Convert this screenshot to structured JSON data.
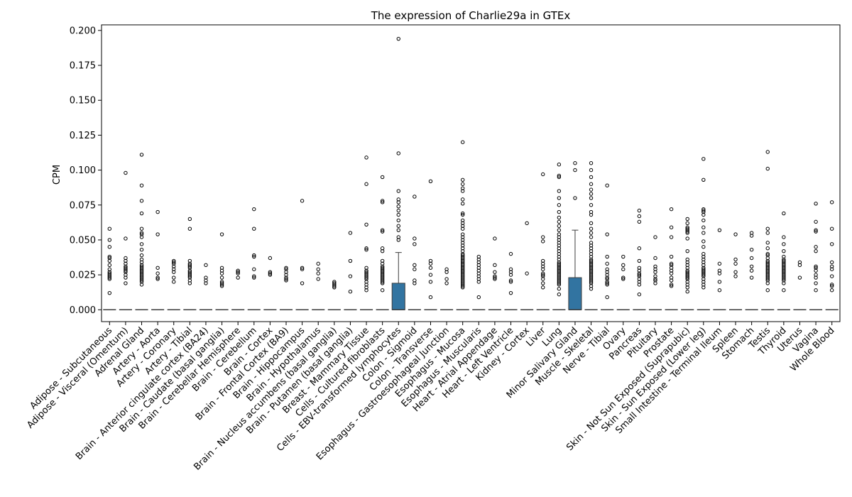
{
  "chart_data": {
    "type": "box",
    "title": "The expression of Charlie29a in GTEx",
    "xlabel": "",
    "ylabel": "CPM",
    "ylim": [
      -0.0085,
      0.204
    ],
    "yticks": [
      "0.000",
      "0.025",
      "0.050",
      "0.075",
      "0.100",
      "0.125",
      "0.150",
      "0.175",
      "0.200"
    ],
    "box_color": "#3274a1",
    "grid": false,
    "legend": "none",
    "categories": [
      "Adipose - Subcutaneous",
      "Adipose - Visceral (Omentum)",
      "Adrenal Gland",
      "Artery - Aorta",
      "Artery - Coronary",
      "Artery - Tibial",
      "Brain - Anterior cingulate cortex (BA24)",
      "Brain - Caudate (basal ganglia)",
      "Brain - Cerebellar Hemisphere",
      "Brain - Cerebellum",
      "Brain - Cortex",
      "Brain - Frontal Cortex (BA9)",
      "Brain - Hippocampus",
      "Brain - Hypothalamus",
      "Brain - Nucleus accumbens (basal ganglia)",
      "Brain - Putamen (basal ganglia)",
      "Breast - Mammary Tissue",
      "Cells - Cultured fibroblasts",
      "Cells - EBV-transformed lymphocytes",
      "Colon - Sigmoid",
      "Colon - Transverse",
      "Esophagus - Gastroesophageal Junction",
      "Esophagus - Mucosa",
      "Esophagus - Muscularis",
      "Heart - Atrial Appendage",
      "Heart - Left Ventricle",
      "Kidney - Cortex",
      "Liver",
      "Lung",
      "Minor Salivary Gland",
      "Muscle - Skeletal",
      "Nerve - Tibial",
      "Ovary",
      "Pancreas",
      "Pituitary",
      "Prostate",
      "Skin - Not Sun Exposed (Suprapubic)",
      "Skin - Sun Exposed (Lower leg)",
      "Small Intestine - Terminal Ileum",
      "Spleen",
      "Stomach",
      "Testis",
      "Thyroid",
      "Uterus",
      "Vagina",
      "Whole Blood"
    ],
    "boxes": [
      {
        "q1": 0,
        "median": 0,
        "q3": 0,
        "whislo": 0,
        "whishi": 0,
        "fliers": [
          0.012,
          0.022,
          0.023,
          0.024,
          0.025,
          0.026,
          0.027,
          0.029,
          0.032,
          0.035,
          0.037,
          0.038,
          0.045,
          0.05,
          0.058
        ]
      },
      {
        "q1": 0,
        "median": 0,
        "q3": 0,
        "whislo": 0,
        "whishi": 0,
        "fliers": [
          0.019,
          0.023,
          0.025,
          0.027,
          0.028,
          0.029,
          0.03,
          0.031,
          0.033,
          0.035,
          0.037,
          0.051,
          0.098
        ]
      },
      {
        "q1": 0,
        "median": 0,
        "q3": 0,
        "whislo": 0,
        "whishi": 0,
        "fliers": [
          0.018,
          0.02,
          0.021,
          0.022,
          0.023,
          0.024,
          0.025,
          0.026,
          0.027,
          0.028,
          0.029,
          0.03,
          0.031,
          0.032,
          0.034,
          0.036,
          0.039,
          0.043,
          0.047,
          0.052,
          0.054,
          0.055,
          0.058,
          0.069,
          0.078,
          0.089,
          0.111
        ]
      },
      {
        "q1": 0,
        "median": 0,
        "q3": 0,
        "whislo": 0,
        "whishi": 0,
        "fliers": [
          0.022,
          0.023,
          0.026,
          0.03,
          0.054,
          0.07
        ]
      },
      {
        "q1": 0,
        "median": 0,
        "q3": 0,
        "whislo": 0,
        "whishi": 0,
        "fliers": [
          0.02,
          0.023,
          0.027,
          0.029,
          0.031,
          0.033,
          0.034,
          0.035
        ]
      },
      {
        "q1": 0,
        "median": 0,
        "q3": 0,
        "whislo": 0,
        "whishi": 0,
        "fliers": [
          0.019,
          0.021,
          0.023,
          0.024,
          0.025,
          0.026,
          0.027,
          0.028,
          0.03,
          0.031,
          0.032,
          0.033,
          0.035,
          0.058,
          0.065
        ]
      },
      {
        "q1": 0,
        "median": 0,
        "q3": 0,
        "whislo": 0,
        "whishi": 0,
        "fliers": [
          0.019,
          0.021,
          0.023,
          0.032
        ]
      },
      {
        "q1": 0,
        "median": 0,
        "q3": 0,
        "whislo": 0,
        "whishi": 0,
        "fliers": [
          0.017,
          0.018,
          0.019,
          0.02,
          0.023,
          0.026,
          0.028,
          0.03,
          0.054
        ]
      },
      {
        "q1": 0,
        "median": 0,
        "q3": 0,
        "whislo": 0,
        "whishi": 0,
        "fliers": [
          0.023,
          0.026,
          0.027,
          0.028
        ]
      },
      {
        "q1": 0,
        "median": 0,
        "q3": 0,
        "whislo": 0,
        "whishi": 0,
        "fliers": [
          0.023,
          0.024,
          0.029,
          0.038,
          0.039,
          0.058,
          0.072
        ]
      },
      {
        "q1": 0,
        "median": 0,
        "q3": 0,
        "whislo": 0,
        "whishi": 0,
        "fliers": [
          0.025,
          0.026,
          0.027,
          0.037
        ]
      },
      {
        "q1": 0,
        "median": 0,
        "q3": 0,
        "whislo": 0,
        "whishi": 0,
        "fliers": [
          0.021,
          0.022,
          0.023,
          0.025,
          0.027,
          0.029,
          0.03
        ]
      },
      {
        "q1": 0,
        "median": 0,
        "q3": 0,
        "whislo": 0,
        "whishi": 0,
        "fliers": [
          0.019,
          0.029,
          0.03,
          0.078
        ]
      },
      {
        "q1": 0,
        "median": 0,
        "q3": 0,
        "whislo": 0,
        "whishi": 0,
        "fliers": [
          0.022,
          0.026,
          0.029,
          0.033
        ]
      },
      {
        "q1": 0,
        "median": 0,
        "q3": 0,
        "whislo": 0,
        "whishi": 0,
        "fliers": [
          0.016,
          0.017,
          0.018,
          0.019,
          0.02
        ]
      },
      {
        "q1": 0,
        "median": 0,
        "q3": 0,
        "whislo": 0,
        "whishi": 0,
        "fliers": [
          0.013,
          0.024,
          0.035,
          0.055
        ]
      },
      {
        "q1": 0,
        "median": 0,
        "q3": 0,
        "whislo": 0,
        "whishi": 0,
        "fliers": [
          0.014,
          0.016,
          0.018,
          0.02,
          0.022,
          0.023,
          0.024,
          0.025,
          0.026,
          0.027,
          0.028,
          0.03,
          0.043,
          0.044,
          0.061,
          0.09,
          0.109
        ]
      },
      {
        "q1": 0,
        "median": 0,
        "q3": 0,
        "whislo": 0,
        "whishi": 0,
        "fliers": [
          0.014,
          0.019,
          0.02,
          0.021,
          0.022,
          0.023,
          0.024,
          0.025,
          0.026,
          0.027,
          0.028,
          0.029,
          0.03,
          0.031,
          0.033,
          0.035,
          0.042,
          0.044,
          0.056,
          0.057,
          0.077,
          0.078,
          0.095
        ]
      },
      {
        "q1": 0,
        "median": 0,
        "q3": 0.019,
        "whislo": 0,
        "whishi": 0.041,
        "fliers": [
          0.05,
          0.052,
          0.057,
          0.06,
          0.064,
          0.068,
          0.071,
          0.074,
          0.077,
          0.079,
          0.085,
          0.112,
          0.194
        ]
      },
      {
        "q1": 0,
        "median": 0,
        "q3": 0,
        "whislo": 0,
        "whishi": 0,
        "fliers": [
          0.019,
          0.021,
          0.029,
          0.032,
          0.047,
          0.051,
          0.081
        ]
      },
      {
        "q1": 0,
        "median": 0,
        "q3": 0,
        "whislo": 0,
        "whishi": 0,
        "fliers": [
          0.009,
          0.02,
          0.025,
          0.03,
          0.033,
          0.035,
          0.092
        ]
      },
      {
        "q1": 0,
        "median": 0,
        "q3": 0,
        "whislo": 0,
        "whishi": 0,
        "fliers": [
          0.019,
          0.022,
          0.027,
          0.029
        ]
      },
      {
        "q1": 0,
        "median": 0,
        "q3": 0,
        "whislo": 0,
        "whishi": 0,
        "fliers": [
          0.016,
          0.017,
          0.018,
          0.019,
          0.02,
          0.021,
          0.022,
          0.023,
          0.024,
          0.025,
          0.026,
          0.027,
          0.028,
          0.029,
          0.03,
          0.031,
          0.032,
          0.033,
          0.034,
          0.035,
          0.036,
          0.037,
          0.038,
          0.039,
          0.04,
          0.042,
          0.044,
          0.046,
          0.048,
          0.05,
          0.052,
          0.054,
          0.058,
          0.06,
          0.062,
          0.064,
          0.068,
          0.069,
          0.076,
          0.079,
          0.085,
          0.087,
          0.09,
          0.093,
          0.12
        ]
      },
      {
        "q1": 0,
        "median": 0,
        "q3": 0,
        "whislo": 0,
        "whishi": 0,
        "fliers": [
          0.009,
          0.02,
          0.022,
          0.024,
          0.026,
          0.028,
          0.03,
          0.032,
          0.034,
          0.036,
          0.038
        ]
      },
      {
        "q1": 0,
        "median": 0,
        "q3": 0,
        "whislo": 0,
        "whishi": 0,
        "fliers": [
          0.022,
          0.023,
          0.024,
          0.027,
          0.032,
          0.051
        ]
      },
      {
        "q1": 0,
        "median": 0,
        "q3": 0,
        "whislo": 0,
        "whishi": 0,
        "fliers": [
          0.012,
          0.02,
          0.021,
          0.025,
          0.027,
          0.029,
          0.04
        ]
      },
      {
        "q1": 0,
        "median": 0,
        "q3": 0,
        "whislo": 0,
        "whishi": 0,
        "fliers": [
          0.026,
          0.062
        ]
      },
      {
        "q1": 0,
        "median": 0,
        "q3": 0,
        "whislo": 0,
        "whishi": 0,
        "fliers": [
          0.016,
          0.019,
          0.022,
          0.024,
          0.025,
          0.026,
          0.029,
          0.031,
          0.033,
          0.035,
          0.049,
          0.052,
          0.097
        ]
      },
      {
        "q1": 0,
        "median": 0,
        "q3": 0,
        "whislo": 0,
        "whishi": 0,
        "fliers": [
          0.011,
          0.015,
          0.018,
          0.019,
          0.02,
          0.021,
          0.022,
          0.023,
          0.024,
          0.025,
          0.026,
          0.027,
          0.028,
          0.029,
          0.03,
          0.031,
          0.032,
          0.033,
          0.034,
          0.036,
          0.038,
          0.04,
          0.042,
          0.044,
          0.046,
          0.048,
          0.05,
          0.052,
          0.054,
          0.057,
          0.06,
          0.063,
          0.066,
          0.07,
          0.075,
          0.08,
          0.085,
          0.095,
          0.096,
          0.104
        ]
      },
      {
        "q1": 0,
        "median": 0,
        "q3": 0.023,
        "whislo": 0,
        "whishi": 0.057,
        "fliers": [
          0.08,
          0.1,
          0.105
        ]
      },
      {
        "q1": 0,
        "median": 0,
        "q3": 0,
        "whislo": 0,
        "whishi": 0,
        "fliers": [
          0.015,
          0.017,
          0.019,
          0.02,
          0.021,
          0.022,
          0.023,
          0.024,
          0.025,
          0.026,
          0.027,
          0.028,
          0.029,
          0.03,
          0.031,
          0.032,
          0.033,
          0.034,
          0.035,
          0.036,
          0.038,
          0.04,
          0.042,
          0.044,
          0.046,
          0.048,
          0.052,
          0.055,
          0.058,
          0.062,
          0.068,
          0.07,
          0.075,
          0.08,
          0.083,
          0.086,
          0.09,
          0.095,
          0.1,
          0.105
        ]
      },
      {
        "q1": 0,
        "median": 0,
        "q3": 0,
        "whislo": 0,
        "whishi": 0,
        "fliers": [
          0.009,
          0.018,
          0.019,
          0.02,
          0.022,
          0.023,
          0.025,
          0.027,
          0.029,
          0.033,
          0.038,
          0.054,
          0.089
        ]
      },
      {
        "q1": 0,
        "median": 0,
        "q3": 0,
        "whislo": 0,
        "whishi": 0,
        "fliers": [
          0.022,
          0.023,
          0.029,
          0.032,
          0.038
        ]
      },
      {
        "q1": 0,
        "median": 0,
        "q3": 0,
        "whislo": 0,
        "whishi": 0,
        "fliers": [
          0.011,
          0.018,
          0.02,
          0.022,
          0.024,
          0.025,
          0.026,
          0.028,
          0.03,
          0.035,
          0.044,
          0.063,
          0.067,
          0.071
        ]
      },
      {
        "q1": 0,
        "median": 0,
        "q3": 0,
        "whislo": 0,
        "whishi": 0,
        "fliers": [
          0.019,
          0.021,
          0.022,
          0.024,
          0.027,
          0.029,
          0.031,
          0.037,
          0.052
        ]
      },
      {
        "q1": 0,
        "median": 0,
        "q3": 0,
        "whislo": 0,
        "whishi": 0,
        "fliers": [
          0.017,
          0.018,
          0.021,
          0.023,
          0.026,
          0.028,
          0.03,
          0.032,
          0.033,
          0.038,
          0.052,
          0.059,
          0.072
        ]
      },
      {
        "q1": 0,
        "median": 0,
        "q3": 0,
        "whislo": 0,
        "whishi": 0,
        "fliers": [
          0.013,
          0.016,
          0.018,
          0.02,
          0.022,
          0.023,
          0.024,
          0.025,
          0.026,
          0.027,
          0.028,
          0.03,
          0.032,
          0.034,
          0.036,
          0.042,
          0.051,
          0.055,
          0.056,
          0.057,
          0.058,
          0.059,
          0.062,
          0.065
        ]
      },
      {
        "q1": 0,
        "median": 0,
        "q3": 0,
        "whislo": 0,
        "whishi": 0,
        "fliers": [
          0.016,
          0.018,
          0.02,
          0.022,
          0.024,
          0.025,
          0.026,
          0.027,
          0.028,
          0.029,
          0.03,
          0.032,
          0.034,
          0.036,
          0.038,
          0.04,
          0.045,
          0.049,
          0.055,
          0.059,
          0.064,
          0.068,
          0.07,
          0.071,
          0.072,
          0.093,
          0.108
        ]
      },
      {
        "q1": 0,
        "median": 0,
        "q3": 0,
        "whislo": 0,
        "whishi": 0,
        "fliers": [
          0.014,
          0.02,
          0.026,
          0.028,
          0.033,
          0.057
        ]
      },
      {
        "q1": 0,
        "median": 0,
        "q3": 0,
        "whislo": 0,
        "whishi": 0,
        "fliers": [
          0.024,
          0.027,
          0.033,
          0.036,
          0.054
        ]
      },
      {
        "q1": 0,
        "median": 0,
        "q3": 0,
        "whislo": 0,
        "whishi": 0,
        "fliers": [
          0.023,
          0.028,
          0.031,
          0.037,
          0.043,
          0.053,
          0.055
        ]
      },
      {
        "q1": 0,
        "median": 0,
        "q3": 0,
        "whislo": 0,
        "whishi": 0,
        "fliers": [
          0.014,
          0.019,
          0.021,
          0.022,
          0.023,
          0.024,
          0.025,
          0.026,
          0.027,
          0.028,
          0.029,
          0.03,
          0.031,
          0.032,
          0.033,
          0.034,
          0.035,
          0.037,
          0.039,
          0.04,
          0.044,
          0.048,
          0.055,
          0.058,
          0.101,
          0.113
        ]
      },
      {
        "q1": 0,
        "median": 0,
        "q3": 0,
        "whislo": 0,
        "whishi": 0,
        "fliers": [
          0.014,
          0.019,
          0.021,
          0.022,
          0.023,
          0.024,
          0.025,
          0.026,
          0.027,
          0.028,
          0.029,
          0.03,
          0.031,
          0.032,
          0.033,
          0.034,
          0.035,
          0.036,
          0.038,
          0.042,
          0.047,
          0.052,
          0.069
        ]
      },
      {
        "q1": 0,
        "median": 0,
        "q3": 0,
        "whislo": 0,
        "whishi": 0,
        "fliers": [
          0.023,
          0.032,
          0.034
        ]
      },
      {
        "q1": 0,
        "median": 0,
        "q3": 0,
        "whislo": 0,
        "whishi": 0,
        "fliers": [
          0.014,
          0.019,
          0.023,
          0.025,
          0.028,
          0.03,
          0.031,
          0.042,
          0.045,
          0.056,
          0.057,
          0.063,
          0.076
        ]
      },
      {
        "q1": 0,
        "median": 0,
        "q3": 0,
        "whislo": 0,
        "whishi": 0,
        "fliers": [
          0.014,
          0.017,
          0.018,
          0.024,
          0.029,
          0.031,
          0.034,
          0.047,
          0.058,
          0.077
        ]
      }
    ]
  }
}
